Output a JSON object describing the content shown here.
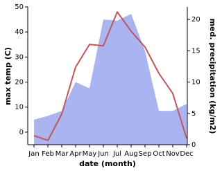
{
  "chart_data": {
    "type": "line",
    "xlabel": "date (month)",
    "ylabel": "max temp (C)",
    "y2label": "med. precipitation (kg/m2)",
    "categories": [
      "Jan",
      "Feb",
      "Mar",
      "Apr",
      "May",
      "Jun",
      "Jul",
      "Aug",
      "Sep",
      "Oct",
      "Nov",
      "Dec"
    ],
    "ylim": [
      -5,
      50
    ],
    "yticks": [
      0,
      10,
      20,
      30,
      40,
      50
    ],
    "y2lim": [
      0,
      22
    ],
    "y2ticks": [
      0,
      5,
      10,
      15,
      20
    ],
    "series": [
      {
        "type": "area",
        "axis": "y2",
        "color": "#aab4f0",
        "values": [
          4,
          4.6,
          5.4,
          10,
          9,
          20,
          19.8,
          20.9,
          15,
          5.4,
          5.4,
          6.5
        ]
      },
      {
        "type": "line",
        "axis": "y",
        "color": "#c0565b",
        "values": [
          -1.4,
          -3.3,
          7.2,
          26,
          35,
          34.5,
          48,
          40.3,
          34,
          23.5,
          15.5,
          -2.5
        ]
      }
    ]
  }
}
